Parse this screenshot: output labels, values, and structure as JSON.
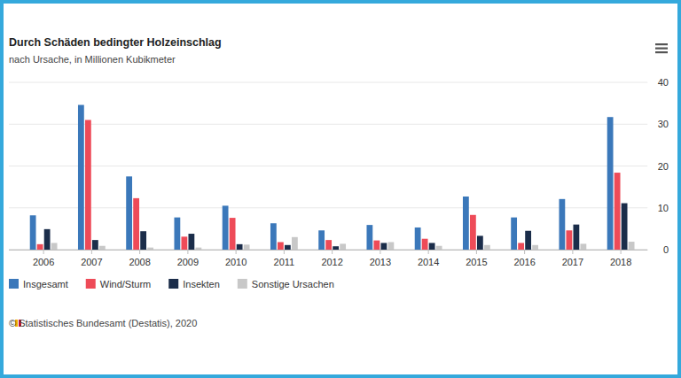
{
  "chart_data": {
    "type": "bar",
    "title": "Durch Schäden bedingter Holzeinschlag",
    "subtitle": "nach Ursache, in Millionen Kubikmeter",
    "source": "© Statistisches Bundesamt (Destatis), 2020",
    "categories": [
      "2006",
      "2007",
      "2008",
      "2009",
      "2010",
      "2011",
      "2012",
      "2013",
      "2014",
      "2015",
      "2016",
      "2017",
      "2018"
    ],
    "series": [
      {
        "name": "Insgesamt",
        "color": "#3b78ba",
        "values": [
          8.2,
          34.6,
          17.5,
          7.7,
          10.5,
          6.3,
          4.6,
          5.9,
          5.3,
          12.7,
          7.7,
          12.1,
          31.7
        ]
      },
      {
        "name": "Wind/Sturm",
        "color": "#ee4b58",
        "values": [
          1.3,
          31.0,
          12.3,
          3.1,
          7.6,
          1.8,
          2.3,
          2.2,
          2.6,
          8.3,
          1.6,
          4.6,
          18.4
        ]
      },
      {
        "name": "Insekten",
        "color": "#1b2d4a",
        "values": [
          4.9,
          2.3,
          4.4,
          3.8,
          1.3,
          1.1,
          0.8,
          1.6,
          1.6,
          3.3,
          4.5,
          6.0,
          11.1
        ]
      },
      {
        "name": "Sonstige Ursachen",
        "color": "#c8c8c8",
        "values": [
          1.6,
          0.9,
          0.5,
          0.5,
          1.2,
          3.0,
          1.4,
          1.8,
          0.9,
          1.1,
          1.1,
          1.4,
          1.9
        ]
      }
    ],
    "ylim": [
      0,
      40
    ],
    "yticks": [
      0,
      10,
      20,
      30,
      40
    ],
    "grid": true,
    "legend": "bottom"
  }
}
